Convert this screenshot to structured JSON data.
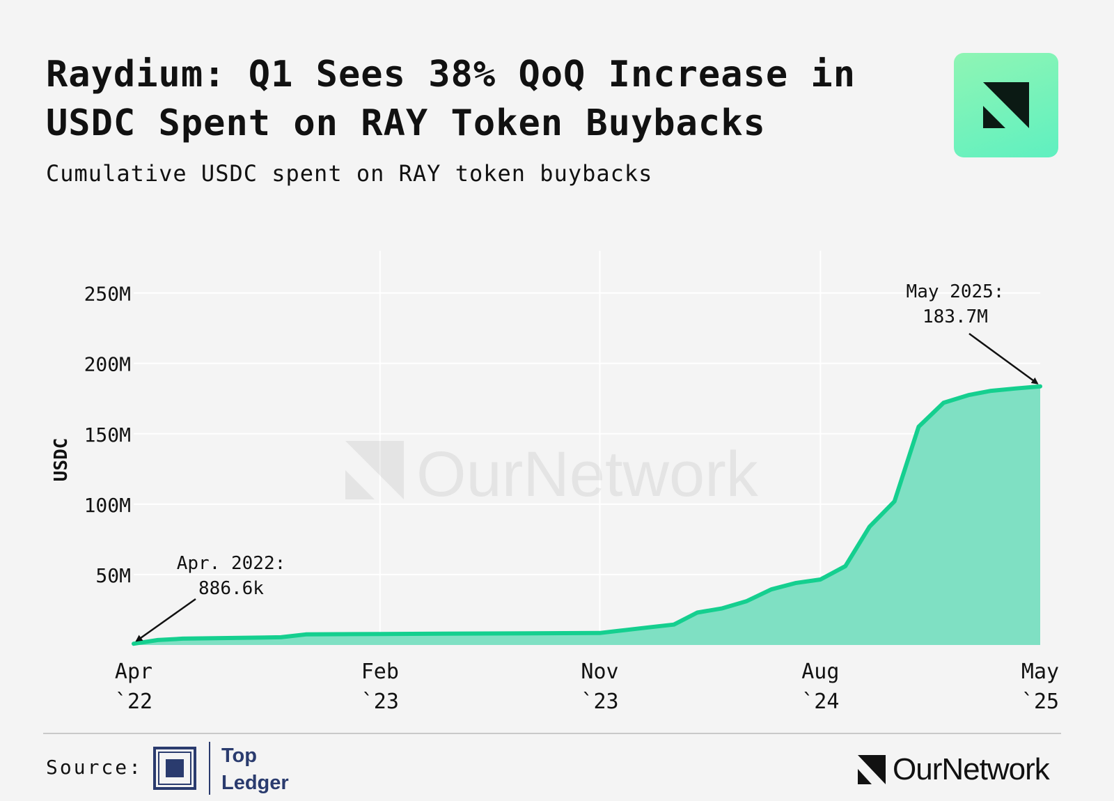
{
  "header": {
    "title_line1": "Raydium: Q1 Sees 38% QoQ Increase in",
    "title_line2": "USDC Spent on RAY Token Buybacks",
    "subtitle": "Cumulative USDC spent on RAY token buybacks"
  },
  "watermark": {
    "text": "OurNetwork"
  },
  "footer": {
    "source_label": "Source:",
    "source_name_line1": "Top",
    "source_name_line2": "Ledger",
    "brand": "OurNetwork"
  },
  "colors": {
    "line": "#15cf8f",
    "area": "#7fe0c3",
    "background": "#f4f4f4",
    "grid": "#ffffff",
    "topledger": "#2a3b6e"
  },
  "chart_data": {
    "type": "area",
    "ylabel": "USDC",
    "xlabel": "",
    "ylim": [
      0,
      280000000
    ],
    "y_ticks": [
      {
        "value": 50000000,
        "label": "50M"
      },
      {
        "value": 100000000,
        "label": "100M"
      },
      {
        "value": 150000000,
        "label": "150M"
      },
      {
        "value": 200000000,
        "label": "200M"
      },
      {
        "value": 250000000,
        "label": "250M"
      }
    ],
    "x_range": [
      "2022-04-01",
      "2025-05-01"
    ],
    "x_ticks": [
      {
        "date": "2022-04-01",
        "label_line1": "Apr",
        "label_line2": "`22"
      },
      {
        "date": "2023-02-01",
        "label_line1": "Feb",
        "label_line2": "`23"
      },
      {
        "date": "2023-11-01",
        "label_line1": "Nov",
        "label_line2": "`23"
      },
      {
        "date": "2024-08-01",
        "label_line1": "Aug",
        "label_line2": "`24"
      },
      {
        "date": "2025-05-01",
        "label_line1": "May",
        "label_line2": "`25"
      }
    ],
    "grid": true,
    "series": [
      {
        "x": [
          "2022-04-01",
          "2022-05-01",
          "2022-06-01",
          "2022-10-01",
          "2022-11-01",
          "2023-02-01",
          "2023-11-01",
          "2023-12-01",
          "2024-01-01",
          "2024-02-01",
          "2024-03-01",
          "2024-04-01",
          "2024-05-01",
          "2024-06-01",
          "2024-07-01",
          "2024-08-01",
          "2024-09-01",
          "2024-10-01",
          "2024-11-01",
          "2024-12-01",
          "2025-01-01",
          "2025-02-01",
          "2025-03-01",
          "2025-04-01",
          "2025-05-01"
        ],
        "values": [
          886600,
          3500000,
          4500000,
          5500000,
          7500000,
          7800000,
          8500000,
          10500000,
          12500000,
          14500000,
          23000000,
          26000000,
          31000000,
          39500000,
          44000000,
          46500000,
          56000000,
          84000000,
          102000000,
          155000000,
          172000000,
          177500000,
          180500000,
          182200000,
          183700000
        ]
      }
    ],
    "annotations": [
      {
        "date": "2022-04-01",
        "value": 886600,
        "label_line1": "Apr. 2022:",
        "label_line2": "886.6k"
      },
      {
        "date": "2025-05-01",
        "value": 183700000,
        "label_line1": "May 2025:",
        "label_line2": "183.7M"
      }
    ]
  }
}
